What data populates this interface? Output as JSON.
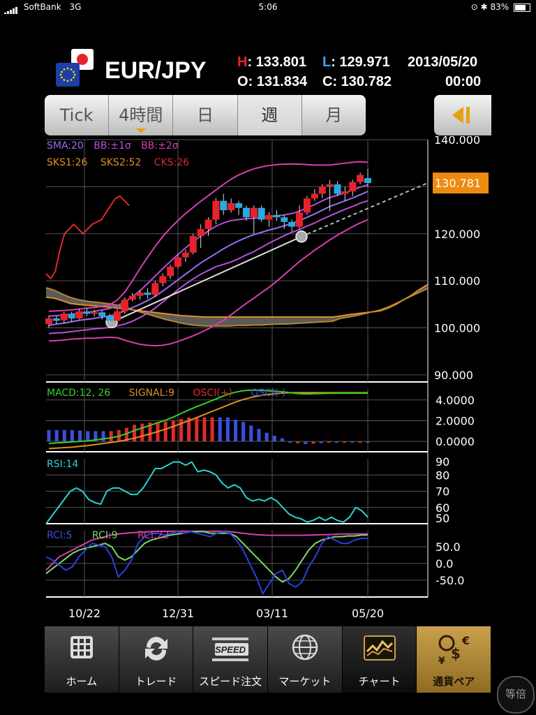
{
  "status": {
    "carrier": "SoftBank",
    "network": "3G",
    "time": "5:06",
    "battery": "83%"
  },
  "pair": "EUR/JPY",
  "quote": {
    "h_label": "H",
    "h_value": ": 133.801",
    "l_label": "L",
    "l_value": ": 129.971",
    "o_label": "O",
    "o_value": ": 131.834",
    "c_label": "C",
    "c_value": ": 130.782",
    "date": "2013/05/20",
    "time": "00:00"
  },
  "tabs": [
    {
      "label": "Tick"
    },
    {
      "label": "4時間"
    },
    {
      "label": "日"
    },
    {
      "label": "週"
    },
    {
      "label": "月"
    }
  ],
  "colors": {
    "up": "#e8222a",
    "down": "#2aa8e0",
    "current_price_bg": "#ee8a0f",
    "gold": "#e7a016"
  },
  "chart_data": [
    {
      "type": "candlestick",
      "title": "EUR/JPY",
      "indicators": [
        "SMA:20",
        "BB:±1σ",
        "BB:±2σ",
        "SKS1:26",
        "SKS2:52",
        "CKS:26"
      ],
      "y_ticks": [
        "140.000",
        "130.000",
        "120.000",
        "110.000",
        "100.000",
        "90.000"
      ],
      "ylim": [
        88.5,
        140.0
      ],
      "current_price": "130.781",
      "x_ticks": [
        "10/22",
        "12/31",
        "03/11",
        "05/20"
      ],
      "candles": [
        {
          "o": 100.8,
          "c": 102.0,
          "h": 102.6,
          "l": 100.0
        },
        {
          "o": 102.0,
          "c": 101.5,
          "h": 102.5,
          "l": 100.8
        },
        {
          "o": 101.6,
          "c": 103.0,
          "h": 103.4,
          "l": 101.0
        },
        {
          "o": 103.0,
          "c": 102.0,
          "h": 103.4,
          "l": 101.3
        },
        {
          "o": 102.0,
          "c": 103.5,
          "h": 104.0,
          "l": 101.8
        },
        {
          "o": 103.5,
          "c": 103.0,
          "h": 104.2,
          "l": 102.5
        },
        {
          "o": 103.0,
          "c": 103.3,
          "h": 103.8,
          "l": 102.4
        },
        {
          "o": 103.3,
          "c": 102.5,
          "h": 103.7,
          "l": 101.8
        },
        {
          "o": 102.5,
          "c": 101.5,
          "h": 103.0,
          "l": 101.0
        },
        {
          "o": 101.5,
          "c": 103.5,
          "h": 104.0,
          "l": 101.2
        },
        {
          "o": 103.5,
          "c": 106.0,
          "h": 106.5,
          "l": 103.0
        },
        {
          "o": 106.0,
          "c": 106.8,
          "h": 107.4,
          "l": 105.6
        },
        {
          "o": 106.8,
          "c": 107.5,
          "h": 108.0,
          "l": 106.0
        },
        {
          "o": 107.5,
          "c": 107.0,
          "h": 108.4,
          "l": 106.2
        },
        {
          "o": 107.0,
          "c": 109.5,
          "h": 110.0,
          "l": 106.6
        },
        {
          "o": 109.5,
          "c": 111.0,
          "h": 111.6,
          "l": 108.8
        },
        {
          "o": 111.0,
          "c": 113.0,
          "h": 113.4,
          "l": 110.4
        },
        {
          "o": 113.0,
          "c": 115.0,
          "h": 115.6,
          "l": 112.6
        },
        {
          "o": 115.0,
          "c": 116.0,
          "h": 116.6,
          "l": 114.0
        },
        {
          "o": 116.0,
          "c": 119.5,
          "h": 120.0,
          "l": 115.6
        },
        {
          "o": 119.5,
          "c": 121.0,
          "h": 122.0,
          "l": 117.0
        },
        {
          "o": 121.0,
          "c": 123.0,
          "h": 123.5,
          "l": 119.5
        },
        {
          "o": 123.0,
          "c": 127.0,
          "h": 127.6,
          "l": 122.0
        },
        {
          "o": 127.0,
          "c": 125.0,
          "h": 128.5,
          "l": 124.0
        },
        {
          "o": 125.0,
          "c": 126.5,
          "h": 127.5,
          "l": 124.5
        },
        {
          "o": 126.5,
          "c": 125.5,
          "h": 127.0,
          "l": 124.0
        },
        {
          "o": 125.5,
          "c": 123.5,
          "h": 126.0,
          "l": 122.8
        },
        {
          "o": 123.5,
          "c": 125.5,
          "h": 126.0,
          "l": 120.0
        },
        {
          "o": 125.5,
          "c": 123.0,
          "h": 126.0,
          "l": 122.5
        },
        {
          "o": 123.0,
          "c": 124.0,
          "h": 124.6,
          "l": 121.5
        },
        {
          "o": 124.0,
          "c": 123.5,
          "h": 125.0,
          "l": 122.7
        },
        {
          "o": 123.5,
          "c": 122.5,
          "h": 124.0,
          "l": 121.0
        },
        {
          "o": 122.5,
          "c": 121.5,
          "h": 123.0,
          "l": 120.5
        },
        {
          "o": 121.5,
          "c": 124.5,
          "h": 126.0,
          "l": 121.0
        },
        {
          "o": 124.5,
          "c": 127.5,
          "h": 128.0,
          "l": 124.0
        },
        {
          "o": 127.5,
          "c": 128.5,
          "h": 129.5,
          "l": 127.0
        },
        {
          "o": 128.5,
          "c": 130.0,
          "h": 130.5,
          "l": 127.6
        },
        {
          "o": 130.0,
          "c": 130.5,
          "h": 131.4,
          "l": 124.8
        },
        {
          "o": 130.5,
          "c": 128.5,
          "h": 131.2,
          "l": 128.0
        },
        {
          "o": 128.5,
          "c": 129.0,
          "h": 130.0,
          "l": 127.0
        },
        {
          "o": 129.0,
          "c": 131.0,
          "h": 131.5,
          "l": 128.0
        },
        {
          "o": 131.0,
          "c": 132.5,
          "h": 133.0,
          "l": 130.5
        },
        {
          "o": 131.834,
          "c": 130.782,
          "h": 133.801,
          "l": 129.971
        }
      ],
      "sma20": [
        100.5,
        100.8,
        101.0,
        101.3,
        101.6,
        101.8,
        102.0,
        102.3,
        102.5,
        103.0,
        103.6,
        104.3,
        105.0,
        105.8,
        106.7,
        107.8,
        109.0,
        110.2,
        111.4,
        112.6,
        113.8,
        114.8,
        115.8,
        116.8,
        117.7,
        118.5,
        119.2,
        119.8,
        120.3,
        120.8,
        121.2,
        121.7,
        122.2,
        122.8,
        123.5,
        124.2,
        125.0,
        125.8,
        126.4,
        127.0,
        127.6,
        128.3,
        129.0
      ],
      "bb_plus1": [
        102.5,
        102.6,
        102.7,
        102.9,
        103.1,
        103.3,
        103.5,
        103.8,
        104.1,
        104.7,
        105.5,
        106.6,
        107.9,
        109.4,
        111.0,
        112.6,
        114.1,
        115.6,
        117.0,
        118.3,
        119.5,
        120.6,
        121.6,
        122.3,
        122.8,
        123.0,
        123.2,
        123.3,
        123.4,
        123.6,
        123.8,
        124.0,
        124.3,
        124.8,
        125.5,
        126.2,
        127.0,
        127.7,
        128.2,
        128.7,
        129.3,
        129.9,
        130.4
      ],
      "bb_plus2": [
        103.5,
        103.6,
        103.7,
        103.8,
        104.0,
        104.2,
        104.3,
        104.6,
        104.9,
        105.9,
        107.6,
        110.0,
        112.6,
        115.0,
        117.3,
        119.4,
        121.2,
        122.8,
        124.3,
        125.6,
        126.9,
        128.1,
        129.3,
        130.5,
        131.6,
        132.5,
        133.2,
        133.8,
        134.2,
        134.5,
        134.7,
        134.8,
        134.8,
        134.8,
        134.7,
        134.6,
        134.6,
        134.6,
        134.8,
        135.0,
        135.2,
        135.3,
        135.2
      ],
      "bb_minus1": [
        98.8,
        98.9,
        99.0,
        99.2,
        99.4,
        99.6,
        99.8,
        99.9,
        100.1,
        100.4,
        100.8,
        101.4,
        102.2,
        103.1,
        104.2,
        105.5,
        106.8,
        108.1,
        109.3,
        110.4,
        111.4,
        112.2,
        113.0,
        113.5,
        114.0,
        114.7,
        115.5,
        116.2,
        117.1,
        118.0,
        118.8,
        119.6,
        120.3,
        120.9,
        121.6,
        122.3,
        123.1,
        123.8,
        124.5,
        125.2,
        125.8,
        126.5,
        127.0
      ],
      "bb_minus2": [
        97.2,
        97.3,
        97.4,
        97.6,
        97.7,
        97.8,
        97.8,
        97.9,
        98.0,
        97.9,
        97.4,
        96.9,
        96.5,
        96.3,
        96.2,
        96.3,
        96.6,
        97.1,
        97.7,
        98.3,
        99.0,
        99.8,
        100.7,
        101.6,
        102.8,
        104.0,
        105.2,
        106.3,
        107.5,
        108.6,
        109.9,
        111.3,
        112.7,
        114.1,
        115.3,
        116.5,
        117.6,
        118.7,
        119.7,
        120.6,
        121.5,
        122.3,
        123.0
      ],
      "senkou1": [
        106.5,
        106.3,
        105.8,
        105.2,
        105.0,
        104.8,
        104.7,
        104.5,
        104.4,
        104.2,
        104.0,
        103.8,
        103.6,
        103.4,
        103.2,
        103.0,
        102.8,
        102.6,
        102.5,
        102.4,
        102.3,
        102.3,
        102.3,
        102.3,
        102.3,
        102.3,
        102.3,
        102.3,
        102.3,
        102.3,
        102.3,
        102.3,
        102.3,
        102.3,
        102.3,
        102.3,
        102.3,
        102.5,
        102.8,
        103.0,
        103.2,
        103.4,
        103.6,
        104.2,
        105.0,
        106.0,
        107.0,
        108.2,
        109.2
      ],
      "senkou2": [
        108.5,
        108.0,
        107.2,
        106.5,
        106.0,
        105.7,
        105.5,
        105.3,
        105.1,
        104.8,
        104.4,
        103.8,
        103.3,
        102.8,
        102.3,
        101.8,
        101.4,
        101.0,
        100.7,
        100.5,
        100.4,
        100.4,
        100.4,
        100.4,
        100.5,
        100.5,
        100.6,
        100.6,
        100.7,
        100.8,
        100.8,
        100.9,
        101.0,
        101.1,
        101.2,
        101.3,
        101.4,
        102.0,
        102.3,
        102.6,
        103.0,
        103.4,
        103.8,
        104.4,
        105.2,
        106.0,
        106.8,
        107.6,
        108.4
      ],
      "chikou": [
        111.5,
        110.5,
        112.0,
        116.5,
        120.0,
        121.0,
        122.0,
        121.0,
        120.0,
        121.0,
        122.0,
        122.5,
        123.0,
        124.5,
        126.0,
        127.5,
        128.0,
        127.0,
        126.0
      ]
    },
    {
      "type": "line",
      "title": "MACD",
      "indicators": [
        "MACD:12, 26",
        "SIGNAL:9",
        "OSCI(+)",
        "OSCI(-)"
      ],
      "y_ticks": [
        "4.0000",
        "2.0000",
        "0.0000"
      ],
      "ylim": [
        -1.0,
        5.2
      ],
      "macd": [
        -0.2,
        -0.15,
        -0.1,
        -0.05,
        0.0,
        0.05,
        0.15,
        0.25,
        0.35,
        0.5,
        0.75,
        1.05,
        1.3,
        1.55,
        1.8,
        2.05,
        2.35,
        2.7,
        3.05,
        3.35,
        3.65,
        3.95,
        4.25,
        4.55,
        4.75,
        4.9,
        4.95,
        4.95,
        4.9,
        4.85,
        4.8,
        4.7,
        4.62,
        4.58,
        4.6,
        4.62,
        4.64,
        4.65,
        4.66,
        4.65,
        4.65,
        4.65
      ],
      "signal": [
        -0.7,
        -0.65,
        -0.6,
        -0.55,
        -0.48,
        -0.4,
        -0.3,
        -0.2,
        -0.1,
        0.0,
        0.15,
        0.32,
        0.52,
        0.72,
        0.95,
        1.18,
        1.45,
        1.72,
        2.0,
        2.3,
        2.6,
        2.9,
        3.2,
        3.5,
        3.8,
        4.05,
        4.25,
        4.4,
        4.52,
        4.6,
        4.66,
        4.7,
        4.7,
        4.7,
        4.7,
        4.7,
        4.7,
        4.7,
        4.7,
        4.7,
        4.7,
        4.7
      ],
      "osci": [
        0.5,
        0.5,
        0.5,
        0.5,
        0.48,
        0.45,
        0.45,
        0.45,
        0.45,
        0.5,
        0.6,
        0.73,
        0.78,
        0.83,
        0.85,
        0.87,
        0.9,
        0.98,
        1.05,
        1.05,
        1.05,
        1.05,
        1.05,
        1.05,
        0.95,
        0.85,
        0.7,
        0.55,
        0.38,
        0.25,
        0.14,
        0.0,
        -0.08,
        -0.12,
        -0.1,
        -0.08,
        -0.06,
        -0.05,
        -0.04,
        -0.05,
        -0.05,
        -0.05
      ]
    },
    {
      "type": "line",
      "title": "RSI",
      "indicators": [
        "RSI:14"
      ],
      "y_ticks": [
        "90",
        "80",
        "70",
        "60",
        "50"
      ],
      "ylim": [
        50,
        90
      ],
      "rsi": [
        50,
        55,
        60,
        65,
        70,
        72,
        70,
        65,
        63,
        62,
        70,
        72,
        72,
        70,
        68,
        68,
        72,
        78,
        84,
        84,
        86,
        88,
        88,
        86,
        88,
        82,
        83,
        82,
        80,
        75,
        72,
        74,
        72,
        66,
        64,
        65,
        64,
        66,
        64,
        60,
        56,
        54,
        53,
        51,
        52,
        54,
        52,
        54,
        52,
        51,
        54,
        60,
        58,
        54
      ]
    },
    {
      "type": "line",
      "title": "RCI",
      "indicators": [
        "RCI:5",
        "RCI:9",
        "RCI:22"
      ],
      "y_ticks": [
        "50.0",
        "0.0",
        "-50.0"
      ],
      "ylim": [
        -100,
        100
      ],
      "rci5": [
        20,
        10,
        -5,
        -20,
        -10,
        20,
        40,
        60,
        55,
        50,
        20,
        -40,
        -20,
        10,
        60,
        80,
        90,
        90,
        85,
        90,
        95,
        90,
        95,
        90,
        85,
        80,
        90,
        95,
        90,
        70,
        40,
        0,
        -40,
        -90,
        -60,
        -30,
        -20,
        -60,
        -70,
        -55,
        -10,
        20,
        60,
        80,
        70,
        60,
        60,
        70,
        75,
        75
      ],
      "rci9": [
        -30,
        -15,
        0,
        15,
        30,
        40,
        45,
        50,
        55,
        60,
        50,
        20,
        10,
        20,
        40,
        60,
        70,
        75,
        80,
        85,
        88,
        90,
        95,
        95,
        95,
        90,
        90,
        90,
        90,
        80,
        60,
        40,
        20,
        0,
        -20,
        -40,
        -55,
        -45,
        -20,
        10,
        40,
        60,
        70,
        75,
        80,
        80,
        82,
        82,
        85,
        85
      ],
      "rci22": [
        -20,
        0,
        20,
        30,
        40,
        50,
        60,
        70,
        75,
        80,
        85,
        88,
        90,
        92,
        93,
        94,
        95,
        96,
        96,
        96,
        96,
        96,
        96,
        96,
        96,
        96,
        96,
        96,
        95,
        93,
        90,
        88,
        86,
        85,
        84,
        84,
        84,
        84,
        84,
        84,
        85,
        85,
        86,
        86,
        87,
        88,
        88,
        88,
        88,
        88
      ]
    }
  ],
  "bottom_nav": [
    {
      "label": "ホーム"
    },
    {
      "label": "トレード"
    },
    {
      "label": "スピード注文"
    },
    {
      "label": "マーケット"
    },
    {
      "label": "チャート"
    },
    {
      "label": "通貨ペア"
    }
  ],
  "speed_icon_text": "SPEED",
  "scale_button": "等倍"
}
